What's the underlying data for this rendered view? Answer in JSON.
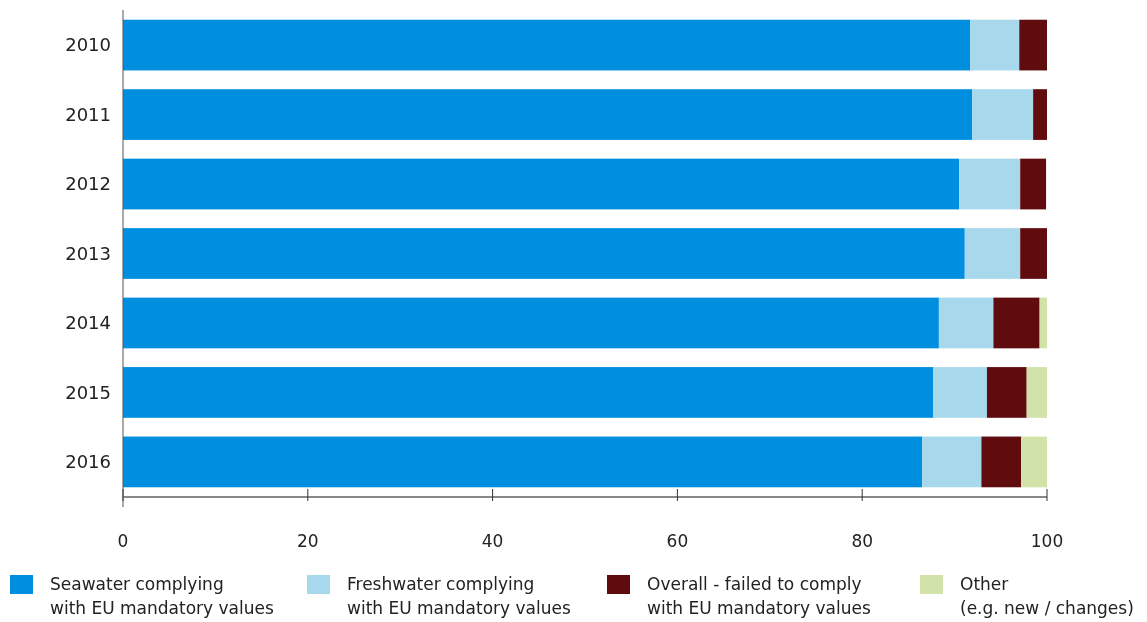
{
  "chart_data": {
    "type": "bar",
    "orientation": "horizontal",
    "stacked": true,
    "categories": [
      "2010",
      "2011",
      "2012",
      "2013",
      "2014",
      "2015",
      "2016"
    ],
    "xlim": [
      0,
      100
    ],
    "xticks": [
      0,
      20,
      40,
      60,
      80,
      100
    ],
    "legend": "bottom",
    "grid": false,
    "series": [
      {
        "name": "Seawater complying\nwith EU mandatory values",
        "color": "#008fdf",
        "values": [
          91.7,
          91.9,
          90.5,
          91.1,
          88.3,
          87.7,
          86.5
        ]
      },
      {
        "name": "Freshwater complying\nwith EU mandatory values",
        "color": "#a8d8ec",
        "values": [
          5.3,
          6.6,
          6.6,
          6.0,
          5.9,
          5.8,
          6.4
        ]
      },
      {
        "name": "Overall - failed to comply\nwith EU mandatory values",
        "color": "#600c0f",
        "values": [
          3.0,
          1.5,
          2.8,
          2.9,
          5.0,
          4.3,
          4.3
        ]
      },
      {
        "name": "Other\n(e.g. new / changes)",
        "color": "#d1e3a8",
        "values": [
          0,
          0,
          0,
          0,
          0.8,
          2.2,
          2.8
        ]
      }
    ]
  }
}
